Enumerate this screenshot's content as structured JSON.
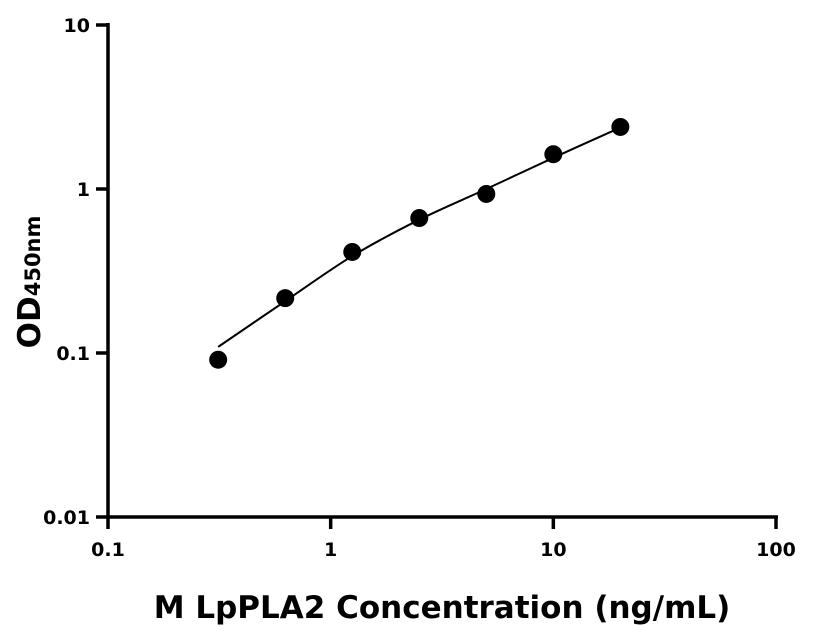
{
  "chart_data": {
    "type": "scatter",
    "title": "",
    "xlabel": "M LpPLA2 Concentration (ng/mL)",
    "ylabel_main": "OD",
    "ylabel_sub": "450nm",
    "xscale": "log",
    "yscale": "log",
    "xlim": [
      0.1,
      100
    ],
    "ylim": [
      0.01,
      10
    ],
    "xticks": [
      0.1,
      1,
      10,
      100
    ],
    "xtick_labels": [
      "0.1",
      "1",
      "10",
      "100"
    ],
    "yticks": [
      0.01,
      0.1,
      1,
      10
    ],
    "ytick_labels": [
      "0.01",
      "0.1",
      "1",
      "10"
    ],
    "grid": false,
    "points": {
      "x": [
        0.3125,
        0.625,
        1.25,
        2.5,
        5,
        10,
        20
      ],
      "y": [
        0.091,
        0.216,
        0.413,
        0.665,
        0.933,
        1.63,
        2.39
      ]
    },
    "fit_curve": {
      "x": [
        0.3125,
        0.625,
        1.25,
        2.5,
        5,
        10,
        20
      ],
      "y": [
        0.109,
        0.207,
        0.39,
        0.65,
        1.0,
        1.55,
        2.37
      ]
    },
    "colors": {
      "points": "#000000",
      "line": "#000000"
    }
  }
}
